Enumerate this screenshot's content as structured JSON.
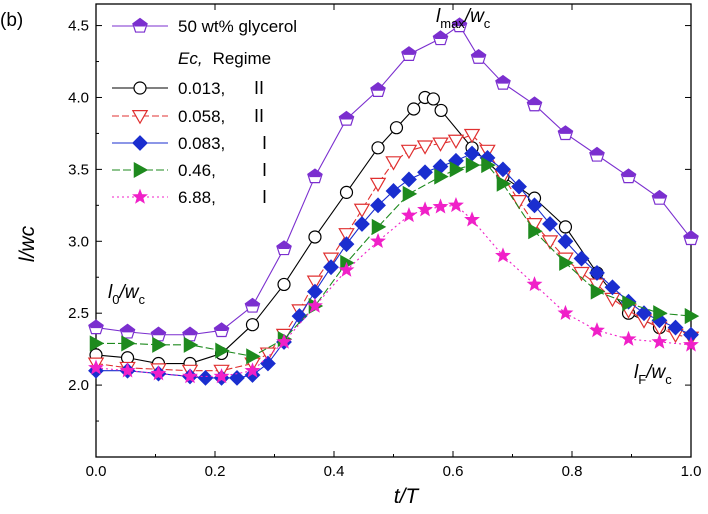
{
  "panel_label": "(b)",
  "chart_data": {
    "type": "line",
    "xlabel": "t/T",
    "ylabel": "l/wc",
    "xlim": [
      0.0,
      1.0
    ],
    "ylim": [
      1.5,
      4.65
    ],
    "x_ticks": [
      "0.0",
      "0.2",
      "0.4",
      "0.6",
      "0.8",
      "1.0"
    ],
    "y_ticks": [
      "2.0",
      "2.5",
      "3.0",
      "3.5",
      "4.0",
      "4.5"
    ],
    "legend_header": {
      "ec": "Ec,",
      "regime": "Regime"
    },
    "annotations": {
      "lmax": {
        "main": "l",
        "sub": "max",
        "after": "/w",
        "sub2": "c"
      },
      "l0": {
        "main": "l",
        "sub": "0",
        "after": "/w",
        "sub2": "c"
      },
      "lf": {
        "main": "l",
        "sub": "F",
        "after": "/w",
        "sub2": "c"
      }
    },
    "series": [
      {
        "name": "50 wt% glycerol",
        "color": "#7B2FCF",
        "marker": "pentagon",
        "x": [
          0.0,
          0.053,
          0.105,
          0.158,
          0.211,
          0.263,
          0.316,
          0.368,
          0.421,
          0.474,
          0.526,
          0.579,
          0.611,
          0.643,
          0.684,
          0.737,
          0.789,
          0.842,
          0.895,
          0.947,
          1.0
        ],
        "y": [
          2.4,
          2.37,
          2.35,
          2.35,
          2.38,
          2.55,
          2.95,
          3.45,
          3.85,
          4.05,
          4.3,
          4.41,
          4.5,
          4.28,
          4.1,
          3.95,
          3.75,
          3.6,
          3.45,
          3.3,
          3.02
        ]
      },
      {
        "name": "0.013,",
        "regime": "II",
        "color": "#000000",
        "marker": "circle",
        "x": [
          0.0,
          0.053,
          0.105,
          0.158,
          0.211,
          0.263,
          0.316,
          0.368,
          0.421,
          0.474,
          0.505,
          0.534,
          0.553,
          0.567,
          0.58,
          0.632,
          0.684,
          0.737,
          0.789,
          0.842,
          0.895,
          0.947
        ],
        "y": [
          2.21,
          2.19,
          2.15,
          2.15,
          2.22,
          2.42,
          2.7,
          3.03,
          3.34,
          3.65,
          3.79,
          3.92,
          4.0,
          3.99,
          3.91,
          3.65,
          3.45,
          3.3,
          3.1,
          2.78,
          2.5,
          2.4
        ]
      },
      {
        "name": "0.058,",
        "regime": "II",
        "color": "#E03030",
        "marker": "triangle-down",
        "x": [
          0.0,
          0.053,
          0.105,
          0.158,
          0.211,
          0.263,
          0.289,
          0.316,
          0.342,
          0.368,
          0.395,
          0.421,
          0.447,
          0.474,
          0.5,
          0.526,
          0.553,
          0.579,
          0.605,
          0.632,
          0.658,
          0.684,
          0.711,
          0.737,
          0.763,
          0.789,
          0.816,
          0.842,
          0.868,
          0.895,
          0.921,
          0.947,
          0.974,
          1.0
        ],
        "y": [
          2.15,
          2.12,
          2.11,
          2.1,
          2.1,
          2.15,
          2.22,
          2.35,
          2.52,
          2.72,
          2.88,
          3.05,
          3.22,
          3.4,
          3.55,
          3.63,
          3.66,
          3.68,
          3.7,
          3.74,
          3.63,
          3.45,
          3.28,
          3.12,
          3.0,
          2.88,
          2.78,
          2.7,
          2.6,
          2.52,
          2.45,
          2.4,
          2.35,
          2.33
        ]
      },
      {
        "name": "0.083,",
        "regime": "I",
        "color": "#1A2ECF",
        "marker": "diamond",
        "x": [
          0.0,
          0.053,
          0.105,
          0.158,
          0.184,
          0.211,
          0.237,
          0.263,
          0.289,
          0.316,
          0.342,
          0.368,
          0.395,
          0.421,
          0.447,
          0.474,
          0.5,
          0.526,
          0.553,
          0.579,
          0.605,
          0.632,
          0.658,
          0.684,
          0.711,
          0.737,
          0.763,
          0.789,
          0.816,
          0.842,
          0.868,
          0.895,
          0.921,
          0.947,
          0.974,
          1.0
        ],
        "y": [
          2.1,
          2.1,
          2.08,
          2.06,
          2.05,
          2.05,
          2.05,
          2.07,
          2.15,
          2.3,
          2.48,
          2.65,
          2.82,
          2.98,
          3.12,
          3.25,
          3.35,
          3.43,
          3.48,
          3.52,
          3.56,
          3.61,
          3.58,
          3.5,
          3.38,
          3.25,
          3.12,
          3.0,
          2.88,
          2.78,
          2.68,
          2.58,
          2.5,
          2.45,
          2.4,
          2.35
        ]
      },
      {
        "name": "0.46,",
        "regime": "I",
        "color": "#1E8A1E",
        "marker": "triangle-right",
        "x": [
          0.0,
          0.053,
          0.105,
          0.158,
          0.211,
          0.263,
          0.316,
          0.368,
          0.421,
          0.474,
          0.526,
          0.579,
          0.605,
          0.632,
          0.658,
          0.684,
          0.737,
          0.789,
          0.842,
          0.895,
          0.947,
          1.0
        ],
        "y": [
          2.29,
          2.29,
          2.28,
          2.28,
          2.24,
          2.2,
          2.32,
          2.55,
          2.85,
          3.1,
          3.33,
          3.45,
          3.5,
          3.53,
          3.53,
          3.4,
          3.07,
          2.85,
          2.65,
          2.57,
          2.5,
          2.48
        ]
      },
      {
        "name": "6.88,",
        "regime": "I",
        "color": "#F020C8",
        "marker": "star",
        "x": [
          0.0,
          0.053,
          0.105,
          0.158,
          0.211,
          0.263,
          0.316,
          0.368,
          0.421,
          0.474,
          0.526,
          0.553,
          0.579,
          0.605,
          0.632,
          0.684,
          0.737,
          0.789,
          0.842,
          0.895,
          0.947,
          1.0
        ],
        "y": [
          2.12,
          2.1,
          2.08,
          2.06,
          2.06,
          2.1,
          2.3,
          2.55,
          2.8,
          3.0,
          3.18,
          3.22,
          3.24,
          3.25,
          3.15,
          2.9,
          2.7,
          2.5,
          2.38,
          2.32,
          2.3,
          2.28
        ]
      }
    ]
  }
}
